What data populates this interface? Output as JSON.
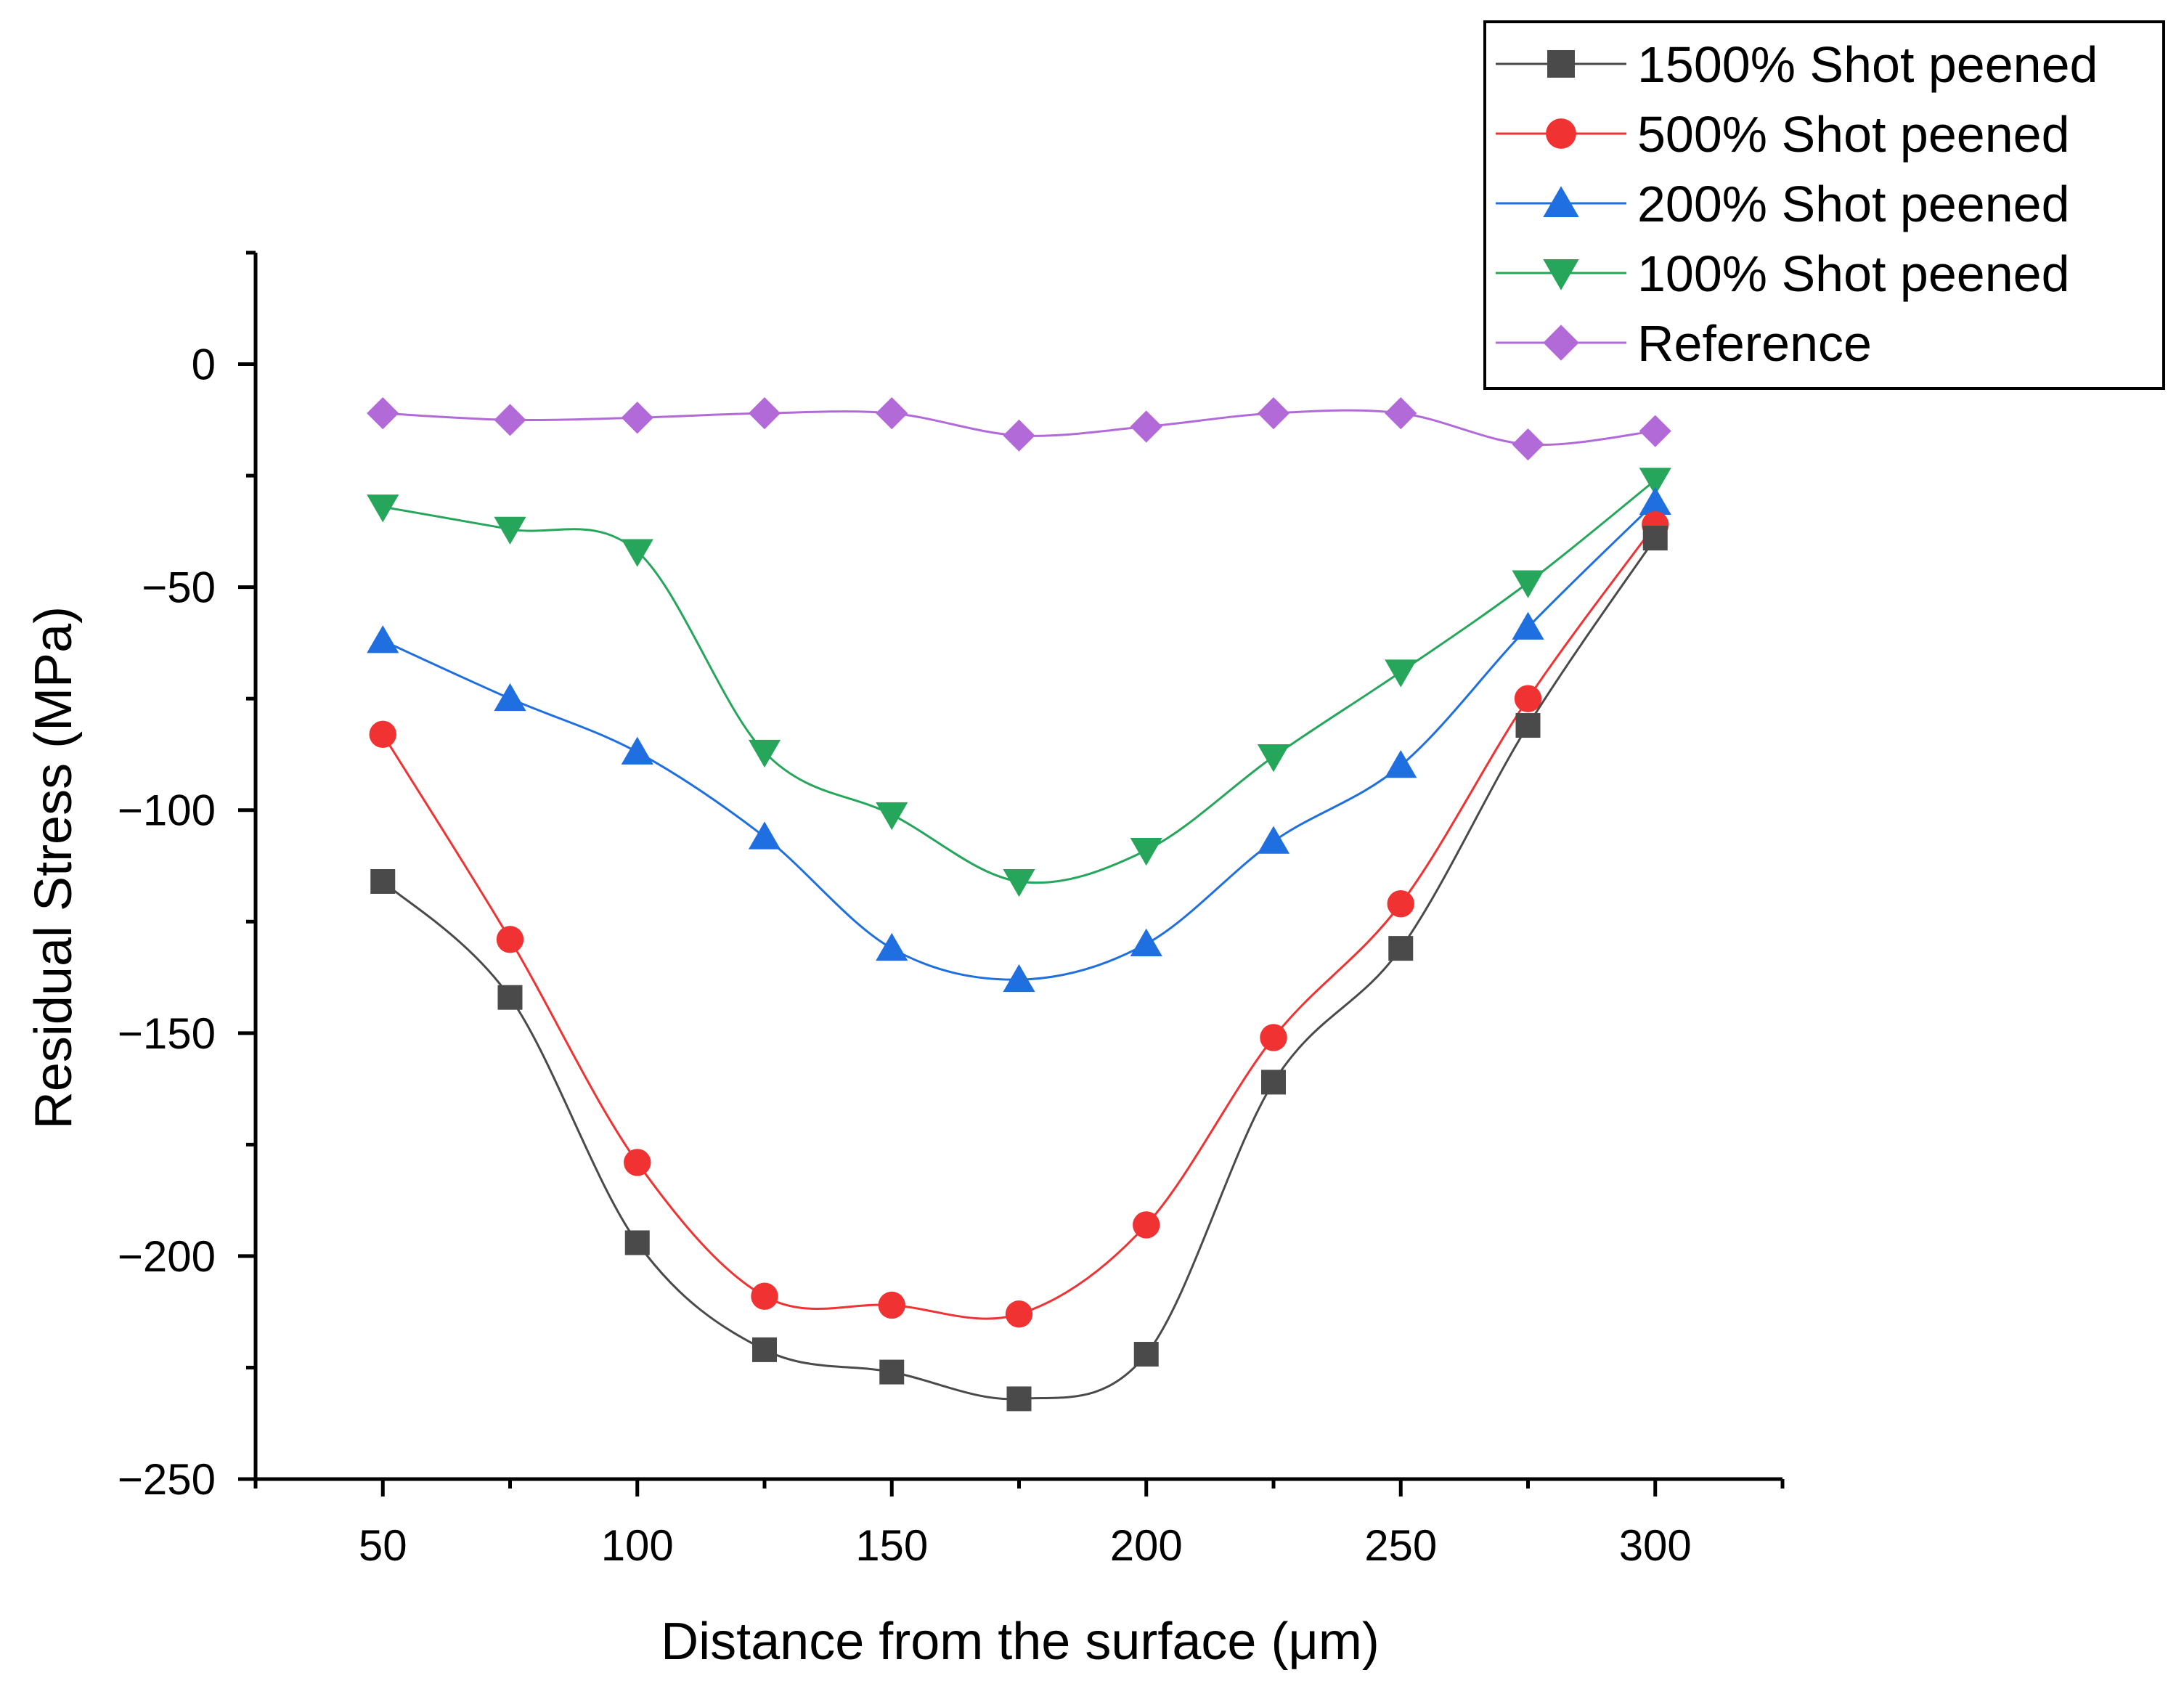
{
  "chart_data": {
    "type": "line",
    "title": "",
    "xlabel": "Distance from the surface (μm)",
    "ylabel": "Residual Stress (MPa)",
    "xlim": [
      25,
      325
    ],
    "ylim": [
      -250,
      25
    ],
    "x_ticks": [
      50,
      100,
      150,
      200,
      250,
      300
    ],
    "y_ticks": [
      0,
      -50,
      -100,
      -150,
      -200,
      -250
    ],
    "x_tick_labels": [
      "50",
      "100",
      "150",
      "200",
      "250",
      "300"
    ],
    "y_tick_labels": [
      "0",
      "−50",
      "−100",
      "−150",
      "−200",
      "−250"
    ],
    "grid": false,
    "legend_position": "top-right",
    "x": [
      50,
      75,
      100,
      125,
      150,
      175,
      200,
      225,
      250,
      275,
      300
    ],
    "series": [
      {
        "name": "1500% Shot peened",
        "marker": "square",
        "color": "#4a4a4a",
        "values": [
          -116,
          -142,
          -197,
          -221,
          -226,
          -232,
          -222,
          -161,
          -131,
          -81,
          -39
        ]
      },
      {
        "name": "500% Shot peened",
        "marker": "circle",
        "color": "#f03232",
        "values": [
          -83,
          -129,
          -179,
          -209,
          -211,
          -213,
          -193,
          -151,
          -121,
          -75,
          -36
        ]
      },
      {
        "name": "200% Shot peened",
        "marker": "triangle-up",
        "color": "#1f6fe0",
        "values": [
          -62,
          -75,
          -87,
          -106,
          -131,
          -138,
          -130,
          -107,
          -90,
          -59,
          -31
        ]
      },
      {
        "name": "100% Shot peened",
        "marker": "triangle-down",
        "color": "#26a65b",
        "values": [
          -32,
          -37,
          -42,
          -87,
          -101,
          -116,
          -109,
          -88,
          -69,
          -49,
          -26
        ]
      },
      {
        "name": "Reference",
        "marker": "diamond",
        "color": "#b36ad9",
        "values": [
          -11,
          -12.5,
          -12,
          -11,
          -11,
          -16,
          -14,
          -11,
          -11,
          -18,
          -15
        ]
      }
    ]
  }
}
